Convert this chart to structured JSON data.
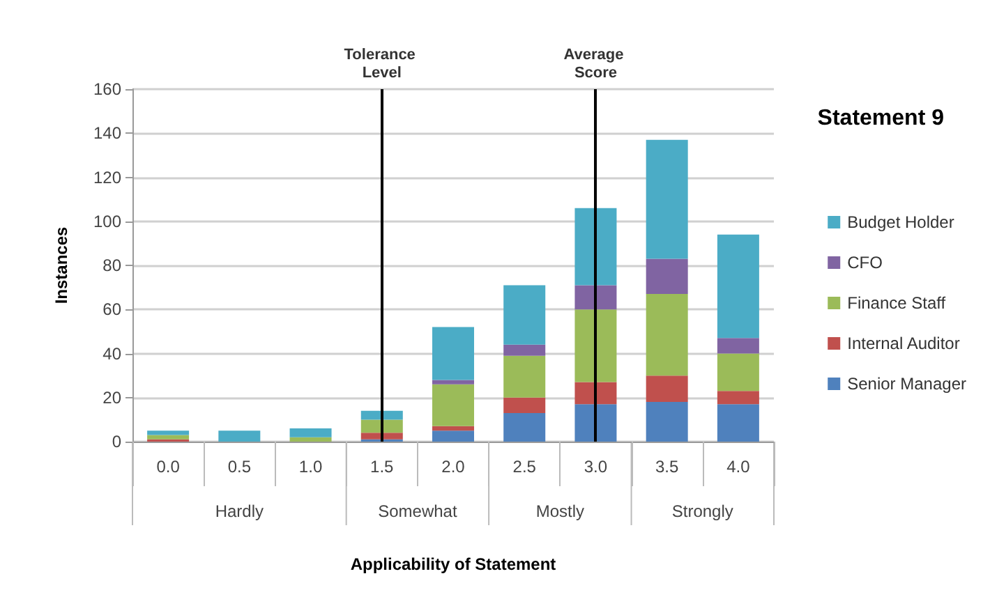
{
  "chart_data": {
    "type": "bar",
    "stacked": true,
    "title": "Statement 9",
    "xlabel": "Applicability of Statement",
    "ylabel": "Instances",
    "categories": [
      "0.0",
      "0.5",
      "1.0",
      "1.5",
      "2.0",
      "2.5",
      "3.0",
      "3.5",
      "4.0"
    ],
    "series": [
      {
        "name": "Senior Manager",
        "color": "#4f81bd",
        "values": [
          0,
          0,
          0,
          1,
          5,
          13,
          17,
          18,
          17
        ]
      },
      {
        "name": "Internal Auditor",
        "color": "#c0504d",
        "values": [
          1,
          0,
          0,
          3,
          2,
          7,
          10,
          12,
          6
        ]
      },
      {
        "name": "Finance Staff",
        "color": "#9bbb59",
        "values": [
          2,
          0,
          2,
          6,
          19,
          19,
          33,
          37,
          17
        ]
      },
      {
        "name": "CFO",
        "color": "#8064a2",
        "values": [
          0,
          0,
          0,
          0,
          2,
          5,
          11,
          16,
          7
        ]
      },
      {
        "name": "Budget Holder",
        "color": "#4bacc6",
        "values": [
          2,
          5,
          4,
          4,
          24,
          27,
          35,
          54,
          47
        ]
      }
    ],
    "ylim": [
      0,
      160
    ],
    "yticks": [
      0,
      20,
      40,
      60,
      80,
      100,
      120,
      140,
      160
    ],
    "grid": "y",
    "legend": "right",
    "ref_lines": [
      {
        "axis": "x",
        "value": "1.5",
        "label": "Tolerance Level",
        "color": "#000000"
      },
      {
        "axis": "x",
        "value": "3.0",
        "label": "Average Score",
        "color": "#000000"
      }
    ],
    "annotations": [
      "Hardly",
      "Somewhat",
      "Mostly",
      "Strongly"
    ]
  }
}
